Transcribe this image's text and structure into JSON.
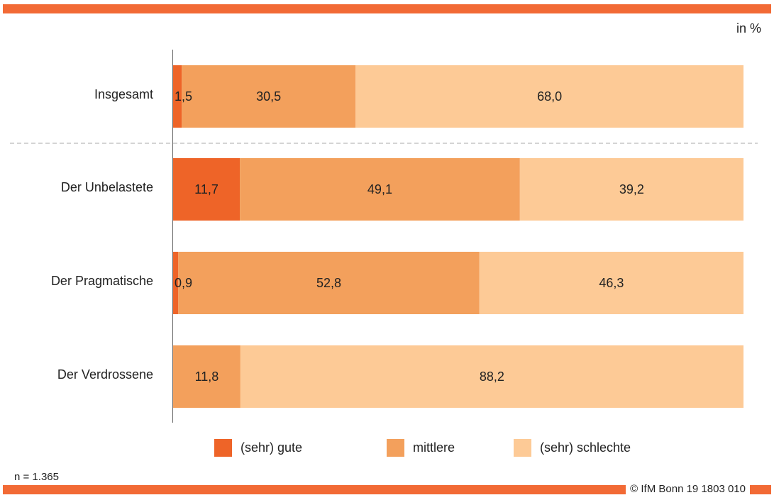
{
  "header": {
    "unit_label": "in %"
  },
  "footer": {
    "sample_size": "n = 1.365",
    "copyright": "© IfM Bonn 19 1803 010"
  },
  "colors": {
    "accent_bar": "#f26a35",
    "series": [
      "#ee6428",
      "#f3a05c",
      "#fdca96"
    ],
    "divider": "#aaaaaa",
    "axis": "#666666"
  },
  "chart_data": {
    "type": "bar",
    "orientation": "horizontal",
    "stacked": true,
    "title": "",
    "xlabel": "",
    "ylabel": "",
    "xlim": [
      0,
      100
    ],
    "categories": [
      "Insgesamt",
      "Der Unbelastete",
      "Der Pragmatische",
      "Der Verdrossene"
    ],
    "series": [
      {
        "name": "(sehr) gute",
        "values": [
          1.5,
          11.7,
          0.9,
          0
        ],
        "labels": [
          "1,5",
          "11,7",
          "0,9",
          ""
        ]
      },
      {
        "name": "mittlere",
        "values": [
          30.5,
          49.1,
          52.8,
          11.8
        ],
        "labels": [
          "30,5",
          "49,1",
          "52,8",
          "11,8"
        ]
      },
      {
        "name": "(sehr) schlechte",
        "values": [
          68.0,
          39.2,
          46.3,
          88.2
        ],
        "labels": [
          "68,0",
          "39,2",
          "46,3",
          "88,2"
        ]
      }
    ],
    "separator_after_category": 0,
    "legend_position": "bottom",
    "grid": false
  }
}
